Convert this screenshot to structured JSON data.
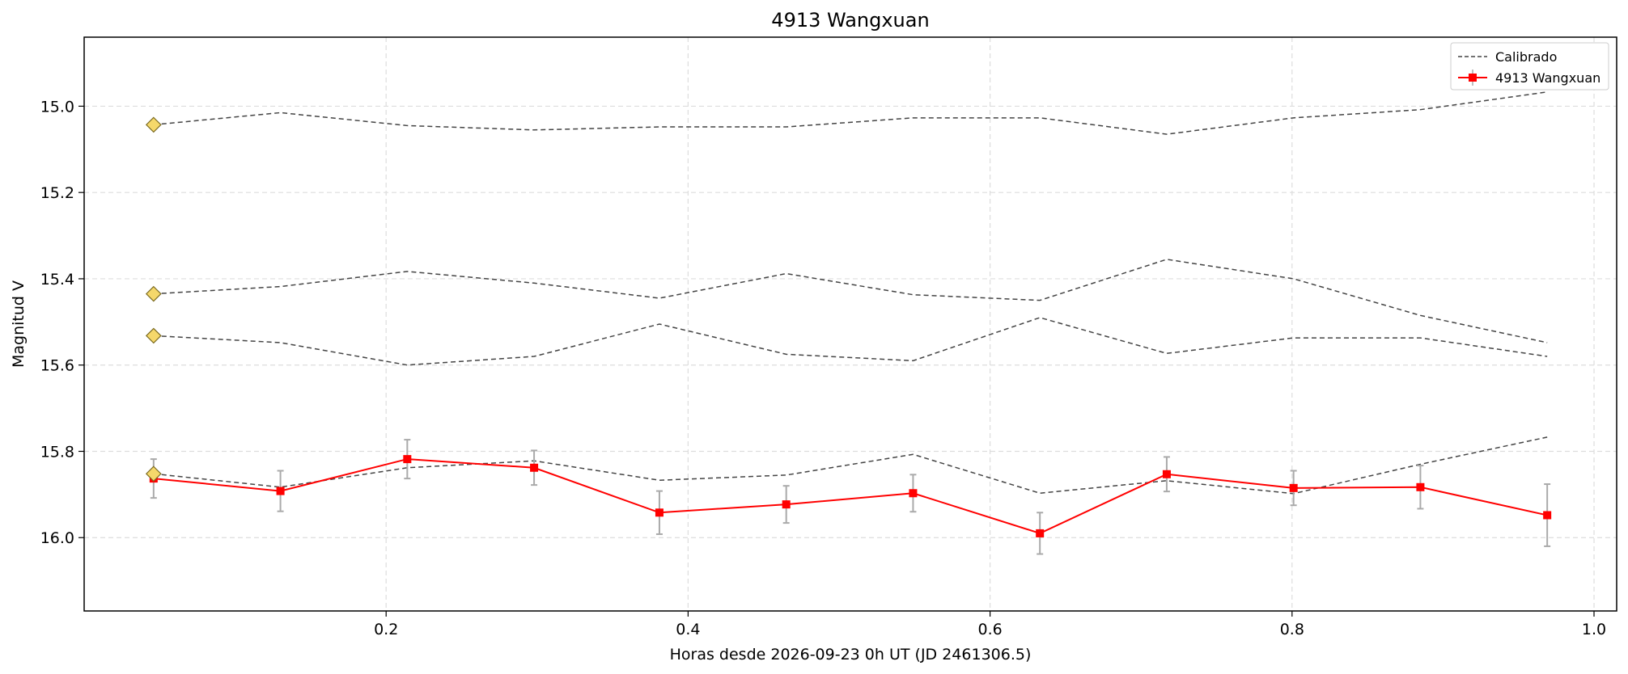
{
  "chart_data": {
    "type": "line",
    "title": "4913 Wangxuan",
    "xlabel": "Horas desde 2026-09-23 0h UT (JD 2461306.5)",
    "ylabel": "Magnitud V",
    "xlim": [
      0.0,
      1.015
    ],
    "ylim": [
      16.17,
      14.84
    ],
    "y_inverted": true,
    "grid": true,
    "legend_position": "top-right",
    "x_ticks": [
      0.2,
      0.4,
      0.6,
      0.8,
      1.0
    ],
    "x_tick_labels": [
      "0.2",
      "0.4",
      "0.6",
      "0.8",
      "1.0"
    ],
    "y_ticks": [
      15.0,
      15.2,
      15.4,
      15.6,
      15.8,
      16.0
    ],
    "y_tick_labels": [
      "15.0",
      "15.2",
      "15.4",
      "15.6",
      "15.8",
      "16.0"
    ],
    "x": [
      0.046,
      0.13,
      0.214,
      0.298,
      0.381,
      0.465,
      0.549,
      0.633,
      0.717,
      0.801,
      0.885,
      0.969
    ],
    "legend": {
      "calibrated_label": "Calibrado",
      "target_label": "4913 Wangxuan"
    },
    "comparison_series": [
      {
        "values": [
          15.043,
          15.015,
          15.045,
          15.055,
          15.048,
          15.048,
          15.027,
          15.027,
          15.065,
          15.027,
          15.008,
          14.967
        ]
      },
      {
        "values": [
          15.435,
          15.418,
          15.383,
          15.41,
          15.445,
          15.388,
          15.437,
          15.45,
          15.355,
          15.4,
          15.485,
          15.548
        ]
      },
      {
        "values": [
          15.532,
          15.548,
          15.6,
          15.58,
          15.505,
          15.575,
          15.59,
          15.49,
          15.573,
          15.537,
          15.537,
          15.58
        ]
      },
      {
        "values": [
          15.852,
          15.883,
          15.838,
          15.822,
          15.867,
          15.855,
          15.807,
          15.897,
          15.868,
          15.898,
          15.83,
          15.767
        ]
      }
    ],
    "reference_markers": [
      {
        "x": 0.046,
        "y": 15.043
      },
      {
        "x": 0.046,
        "y": 15.435
      },
      {
        "x": 0.046,
        "y": 15.532
      },
      {
        "x": 0.046,
        "y": 15.852
      }
    ],
    "target_series": {
      "name": "4913 Wangxuan",
      "values": [
        15.863,
        15.892,
        15.818,
        15.838,
        15.942,
        15.923,
        15.897,
        15.99,
        15.853,
        15.885,
        15.883,
        15.948
      ],
      "errors": [
        0.045,
        0.047,
        0.045,
        0.04,
        0.05,
        0.043,
        0.043,
        0.048,
        0.04,
        0.04,
        0.05,
        0.072
      ]
    },
    "colors": {
      "target": "#ff0000",
      "calibrated": "#444444",
      "errorbar": "#aaaaaa",
      "marker_fill": "#f5d86b",
      "marker_edge": "#7a6a20",
      "grid": "#dddddd"
    }
  }
}
